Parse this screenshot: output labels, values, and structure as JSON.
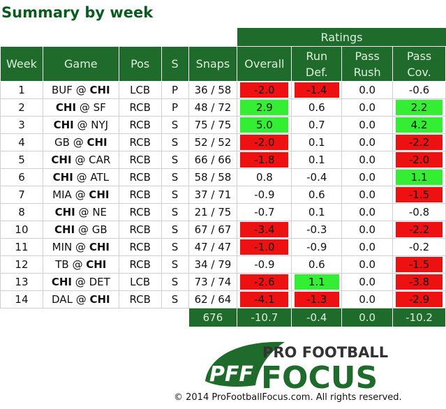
{
  "title": "Summary by week",
  "group_header": "Ratings",
  "columns": {
    "week": "Week",
    "game": "Game",
    "pos": "Pos",
    "s": "S",
    "snaps": "Snaps",
    "overall": "Overall",
    "run_def": [
      "Run",
      "Def."
    ],
    "pass_rush": [
      "Pass",
      "Rush"
    ],
    "pass_cov": [
      "Pass",
      "Cov."
    ]
  },
  "chart_data": {
    "type": "table",
    "title": "Summary by week",
    "rows": [
      {
        "week": "1",
        "away": "BUF",
        "home": "CHI",
        "bold": "home",
        "pos": "LCB",
        "s": "P",
        "snaps": "36 / 58",
        "overall": "-2.0",
        "run_def": "-1.4",
        "pass_rush": "0.0",
        "pass_cov": "-0.6"
      },
      {
        "week": "2",
        "away": "CHI",
        "home": "SF",
        "bold": "away",
        "pos": "RCB",
        "s": "P",
        "snaps": "48 / 72",
        "overall": "2.9",
        "run_def": "0.6",
        "pass_rush": "0.0",
        "pass_cov": "2.2"
      },
      {
        "week": "3",
        "away": "CHI",
        "home": "NYJ",
        "bold": "away",
        "pos": "RCB",
        "s": "S",
        "snaps": "75 / 75",
        "overall": "5.0",
        "run_def": "0.7",
        "pass_rush": "0.0",
        "pass_cov": "4.2"
      },
      {
        "week": "4",
        "away": "GB",
        "home": "CHI",
        "bold": "home",
        "pos": "RCB",
        "s": "S",
        "snaps": "52 / 52",
        "overall": "-2.0",
        "run_def": "0.1",
        "pass_rush": "0.0",
        "pass_cov": "-2.2"
      },
      {
        "week": "5",
        "away": "CHI",
        "home": "CAR",
        "bold": "away",
        "pos": "RCB",
        "s": "S",
        "snaps": "66 / 66",
        "overall": "-1.8",
        "run_def": "0.1",
        "pass_rush": "0.0",
        "pass_cov": "-2.0"
      },
      {
        "week": "6",
        "away": "CHI",
        "home": "ATL",
        "bold": "away",
        "pos": "RCB",
        "s": "S",
        "snaps": "58 / 58",
        "overall": "0.8",
        "run_def": "-0.4",
        "pass_rush": "0.0",
        "pass_cov": "1.1"
      },
      {
        "week": "7",
        "away": "MIA",
        "home": "CHI",
        "bold": "home",
        "pos": "RCB",
        "s": "S",
        "snaps": "37 / 71",
        "overall": "-0.9",
        "run_def": "0.6",
        "pass_rush": "0.0",
        "pass_cov": "-1.5"
      },
      {
        "week": "8",
        "away": "CHI",
        "home": "NE",
        "bold": "away",
        "pos": "RCB",
        "s": "S",
        "snaps": "21 / 75",
        "overall": "-0.7",
        "run_def": "0.1",
        "pass_rush": "0.0",
        "pass_cov": "-0.8"
      },
      {
        "week": "10",
        "away": "CHI",
        "home": "GB",
        "bold": "away",
        "pos": "RCB",
        "s": "S",
        "snaps": "67 / 67",
        "overall": "-3.4",
        "run_def": "-0.3",
        "pass_rush": "0.0",
        "pass_cov": "-2.2"
      },
      {
        "week": "11",
        "away": "MIN",
        "home": "CHI",
        "bold": "home",
        "pos": "RCB",
        "s": "S",
        "snaps": "47 / 47",
        "overall": "-1.0",
        "run_def": "-0.9",
        "pass_rush": "0.0",
        "pass_cov": "-0.2"
      },
      {
        "week": "12",
        "away": "TB",
        "home": "CHI",
        "bold": "home",
        "pos": "RCB",
        "s": "S",
        "snaps": "34 / 79",
        "overall": "-0.9",
        "run_def": "0.6",
        "pass_rush": "0.0",
        "pass_cov": "-1.5"
      },
      {
        "week": "13",
        "away": "CHI",
        "home": "DET",
        "bold": "away",
        "pos": "LCB",
        "s": "S",
        "snaps": "73 / 74",
        "overall": "-2.6",
        "run_def": "1.1",
        "pass_rush": "0.0",
        "pass_cov": "-3.8"
      },
      {
        "week": "14",
        "away": "DAL",
        "home": "CHI",
        "bold": "home",
        "pos": "RCB",
        "s": "S",
        "snaps": "62 / 64",
        "overall": "-4.1",
        "run_def": "-1.3",
        "pass_rush": "0.0",
        "pass_cov": "-2.9"
      }
    ],
    "totals": {
      "snaps": "676",
      "overall": "-10.7",
      "run_def": "-0.4",
      "pass_rush": "0.0",
      "pass_cov": "-10.2"
    },
    "highlight_threshold": 1.0
  },
  "colors": {
    "header_green": "#1f6b2b",
    "positive": "#33ee33",
    "negative": "#ee1111",
    "title_green": "#0a5c1e"
  },
  "logo": {
    "line1": "PRO FOOTBALL",
    "line2": "FOCUS",
    "mark": "PFF"
  },
  "copyright": "© 2014 ProFootballFocus.com. All rights reserved."
}
